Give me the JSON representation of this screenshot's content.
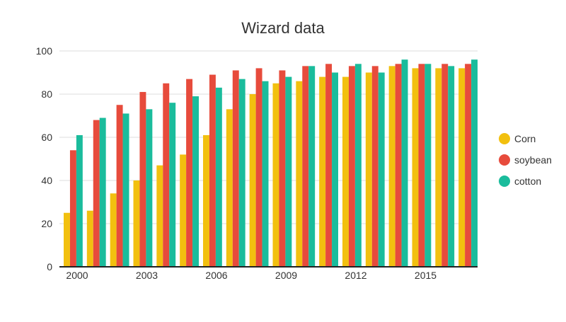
{
  "chart_data": {
    "type": "bar",
    "title": "Wizard data",
    "xlabel": "",
    "ylabel": "",
    "ylim": [
      0,
      100
    ],
    "yticks": [
      0,
      20,
      40,
      60,
      80,
      100
    ],
    "grid": true,
    "legend_position": "right",
    "categories": [
      "2000",
      "2001",
      "2002",
      "2003",
      "2004",
      "2005",
      "2006",
      "2007",
      "2008",
      "2009",
      "2010",
      "2011",
      "2012",
      "2013",
      "2014",
      "2015",
      "2016",
      "2017"
    ],
    "xtick_labels": [
      "2000",
      "2003",
      "2006",
      "2009",
      "2012",
      "2015"
    ],
    "series": [
      {
        "name": "Corn",
        "color": "#f2c00f",
        "values": [
          25,
          26,
          34,
          40,
          47,
          52,
          61,
          73,
          80,
          85,
          86,
          88,
          88,
          90,
          93,
          92,
          92,
          92
        ]
      },
      {
        "name": "soybean",
        "color": "#e74b3c",
        "values": [
          54,
          68,
          75,
          81,
          85,
          87,
          89,
          91,
          92,
          91,
          93,
          94,
          93,
          93,
          94,
          94,
          94,
          94
        ]
      },
      {
        "name": "cotton",
        "color": "#1abc9c",
        "values": [
          61,
          69,
          71,
          73,
          76,
          79,
          83,
          87,
          86,
          88,
          93,
          90,
          94,
          90,
          96,
          94,
          93,
          96
        ]
      }
    ]
  }
}
